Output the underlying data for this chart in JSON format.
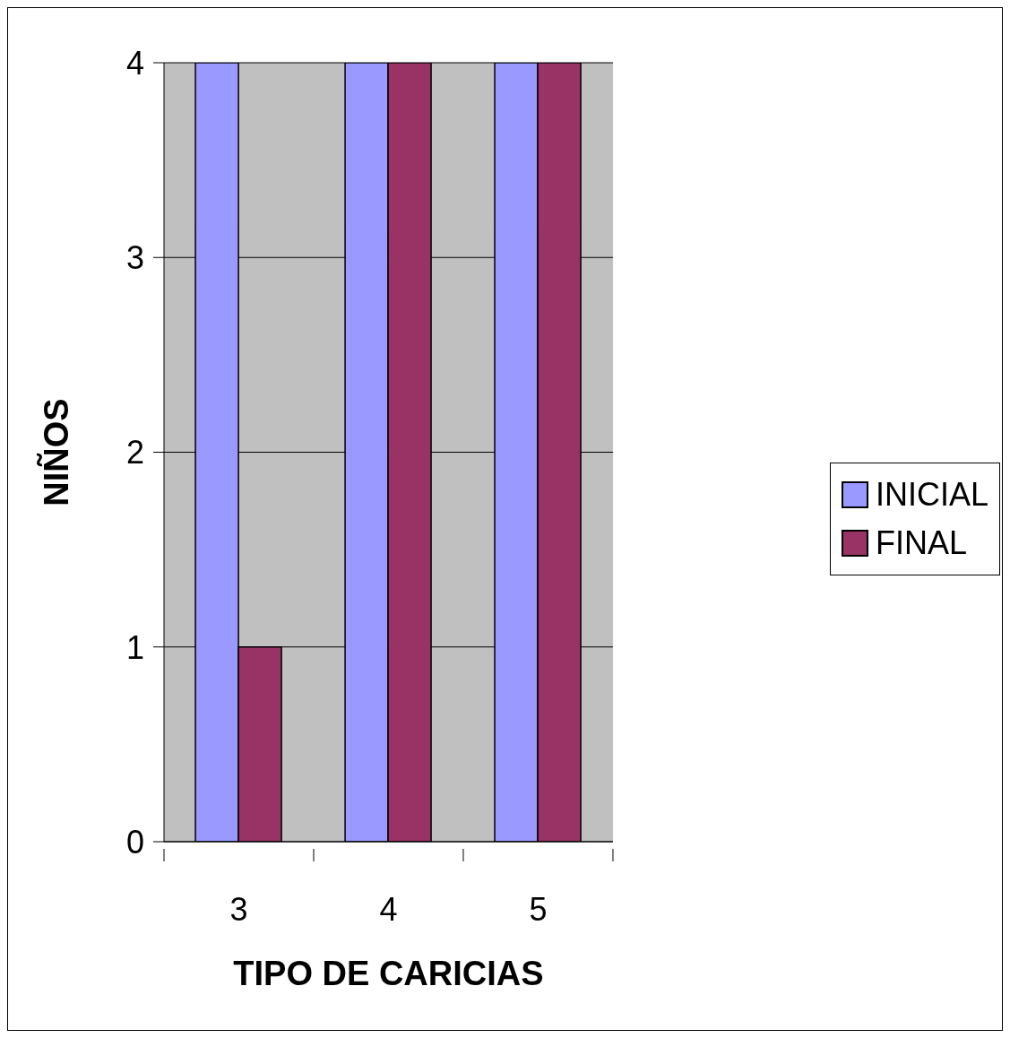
{
  "chart_data": {
    "type": "bar",
    "xlabel": "TIPO DE CARICIAS",
    "ylabel": "NIÑOS",
    "categories": [
      "3",
      "4",
      "5"
    ],
    "series": [
      {
        "name": "INICIAL",
        "color": "#9999ff",
        "values": [
          4,
          4,
          4
        ]
      },
      {
        "name": "FINAL",
        "color": "#993366",
        "values": [
          1,
          4,
          4
        ]
      }
    ],
    "ylim": [
      0,
      4
    ],
    "yticks": [
      0,
      1,
      2,
      3,
      4
    ],
    "grid": "y",
    "legend": "right"
  }
}
